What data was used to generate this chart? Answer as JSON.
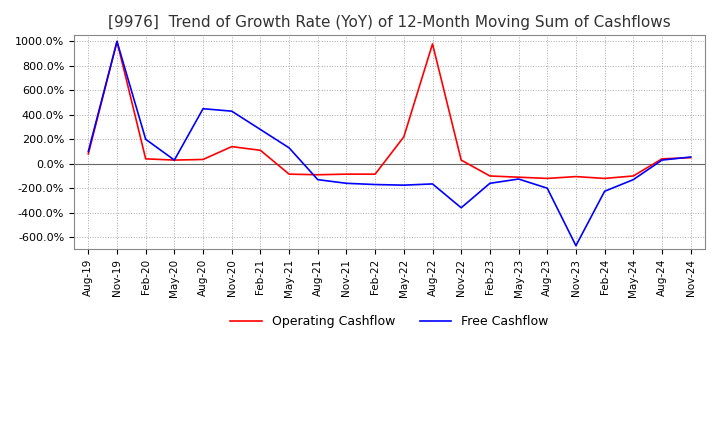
{
  "title": "[9976]  Trend of Growth Rate (YoY) of 12-Month Moving Sum of Cashflows",
  "title_fontsize": 11,
  "ylim": [
    -700,
    1050
  ],
  "yticks": [
    -600,
    -400,
    -200,
    0,
    200,
    400,
    600,
    800,
    1000
  ],
  "ytick_labels": [
    "-600.0%",
    "-400.0%",
    "-200.0%",
    "0.0%",
    "200.0%",
    "400.0%",
    "600.0%",
    "800.0%",
    "1000.0%"
  ],
  "background_color": "#ffffff",
  "grid_color": "#aaaaaa",
  "operating_color": "#ff0000",
  "free_color": "#0000ff",
  "x_labels": [
    "Aug-19",
    "Nov-19",
    "Feb-20",
    "May-20",
    "Aug-20",
    "Nov-20",
    "Feb-21",
    "May-21",
    "Aug-21",
    "Nov-21",
    "Feb-22",
    "May-22",
    "Aug-22",
    "Nov-22",
    "Feb-23",
    "May-23",
    "Aug-23",
    "Nov-23",
    "Feb-24",
    "May-24",
    "Aug-24",
    "Nov-24"
  ],
  "operating_cashflow": [
    80,
    1000,
    40,
    30,
    35,
    140,
    110,
    -85,
    -90,
    -85,
    -85,
    220,
    980,
    30,
    -100,
    -110,
    -120,
    -105,
    -120,
    -100,
    40,
    50
  ],
  "free_cashflow": [
    100,
    1000,
    200,
    30,
    450,
    430,
    280,
    130,
    -130,
    -160,
    -170,
    -175,
    -165,
    -360,
    -160,
    -125,
    -200,
    -670,
    -225,
    -130,
    30,
    55
  ]
}
